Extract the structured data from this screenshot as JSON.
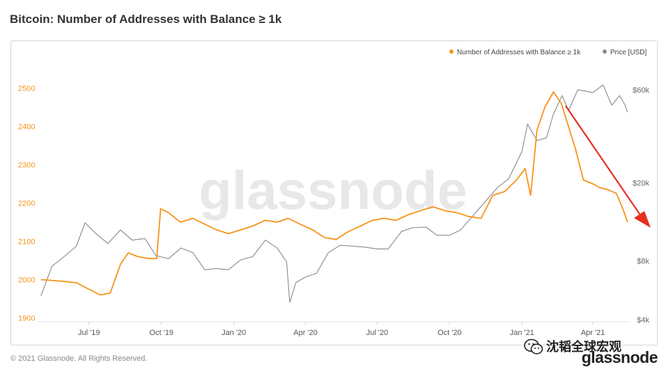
{
  "title": "Bitcoin: Number of Addresses with Balance ≥ 1k",
  "watermark": "glassnode",
  "footer": "© 2021 Glassnode. All Rights Reserved.",
  "brand_logo": "glassnode",
  "wechat_label": "沈韬全球宏观",
  "chart_data": {
    "type": "line",
    "x_ticks": [
      "Jul '19",
      "Oct '19",
      "Jan '20",
      "Apr '20",
      "Jul '20",
      "Oct '20",
      "Jan '21",
      "Apr '21"
    ],
    "y_left": {
      "ticks": [
        1900,
        2000,
        2100,
        2200,
        2300,
        2400,
        2500
      ],
      "range": [
        1890,
        2530
      ],
      "color": "#f7931a"
    },
    "y_right": {
      "ticks": [
        "$4k",
        "$8k",
        "$20k",
        "$60k"
      ],
      "scale": "log",
      "color": "#666666"
    },
    "legend_position": "top-right",
    "grid": false,
    "series": [
      {
        "name": "Number of Addresses with Balance ≥ 1k",
        "axis": "left",
        "color": "#f7931a",
        "x": [
          "2019-05-01",
          "2019-05-15",
          "2019-06-01",
          "2019-06-15",
          "2019-07-01",
          "2019-07-15",
          "2019-07-28",
          "2019-08-10",
          "2019-08-20",
          "2019-09-01",
          "2019-09-15",
          "2019-09-25",
          "2019-09-30",
          "2019-10-10",
          "2019-10-25",
          "2019-11-10",
          "2019-11-25",
          "2019-12-10",
          "2019-12-25",
          "2020-01-10",
          "2020-01-25",
          "2020-02-10",
          "2020-02-25",
          "2020-03-10",
          "2020-03-25",
          "2020-04-10",
          "2020-04-25",
          "2020-05-10",
          "2020-05-25",
          "2020-06-10",
          "2020-06-25",
          "2020-07-10",
          "2020-07-25",
          "2020-08-10",
          "2020-08-25",
          "2020-09-10",
          "2020-09-25",
          "2020-10-10",
          "2020-10-25",
          "2020-11-10",
          "2020-11-25",
          "2020-12-10",
          "2020-12-25",
          "2021-01-05",
          "2021-01-12",
          "2021-01-20",
          "2021-01-30",
          "2021-02-10",
          "2021-02-20",
          "2021-03-01",
          "2021-03-10",
          "2021-03-20",
          "2021-04-01",
          "2021-04-10",
          "2021-04-20",
          "2021-05-01",
          "2021-05-10",
          "2021-05-15"
        ],
        "y": [
          2000,
          1998,
          1995,
          1992,
          1975,
          1960,
          1965,
          2040,
          2070,
          2060,
          2055,
          2055,
          2185,
          2175,
          2150,
          2160,
          2145,
          2130,
          2120,
          2130,
          2140,
          2155,
          2150,
          2160,
          2145,
          2130,
          2110,
          2105,
          2125,
          2140,
          2155,
          2160,
          2155,
          2170,
          2180,
          2190,
          2180,
          2175,
          2165,
          2160,
          2220,
          2230,
          2260,
          2290,
          2220,
          2390,
          2450,
          2490,
          2460,
          2400,
          2340,
          2260,
          2250,
          2240,
          2235,
          2225,
          2180,
          2150
        ]
      },
      {
        "name": "Price [USD]",
        "axis": "right",
        "color": "#888888",
        "x": [
          "2019-05-01",
          "2019-05-15",
          "2019-06-01",
          "2019-06-15",
          "2019-06-26",
          "2019-07-10",
          "2019-07-25",
          "2019-08-10",
          "2019-08-25",
          "2019-09-10",
          "2019-09-24",
          "2019-10-10",
          "2019-10-26",
          "2019-11-10",
          "2019-11-25",
          "2019-12-10",
          "2019-12-25",
          "2020-01-10",
          "2020-01-25",
          "2020-02-10",
          "2020-02-25",
          "2020-03-08",
          "2020-03-12",
          "2020-03-20",
          "2020-04-01",
          "2020-04-15",
          "2020-04-30",
          "2020-05-15",
          "2020-06-01",
          "2020-06-15",
          "2020-07-01",
          "2020-07-15",
          "2020-08-01",
          "2020-08-15",
          "2020-09-01",
          "2020-09-15",
          "2020-10-01",
          "2020-10-15",
          "2020-11-01",
          "2020-11-15",
          "2020-12-01",
          "2020-12-15",
          "2021-01-01",
          "2021-01-08",
          "2021-01-20",
          "2021-02-01",
          "2021-02-10",
          "2021-02-21",
          "2021-03-01",
          "2021-03-13",
          "2021-04-01",
          "2021-04-14",
          "2021-04-25",
          "2021-05-05",
          "2021-05-12",
          "2021-05-15"
        ],
        "y": [
          5300,
          7500,
          8500,
          9500,
          12500,
          11000,
          9800,
          11500,
          10200,
          10400,
          8500,
          8200,
          9300,
          8800,
          7200,
          7300,
          7200,
          8100,
          8400,
          10200,
          9300,
          7900,
          4900,
          6200,
          6600,
          6900,
          8800,
          9600,
          9500,
          9400,
          9200,
          9200,
          11300,
          11800,
          11900,
          10800,
          10800,
          11500,
          13800,
          16000,
          19000,
          21000,
          29000,
          40000,
          33000,
          34000,
          45000,
          56000,
          47000,
          60000,
          58000,
          63500,
          50000,
          56000,
          50000,
          46000
        ]
      }
    ]
  },
  "annotation": {
    "type": "arrow",
    "color": "#e53020"
  }
}
